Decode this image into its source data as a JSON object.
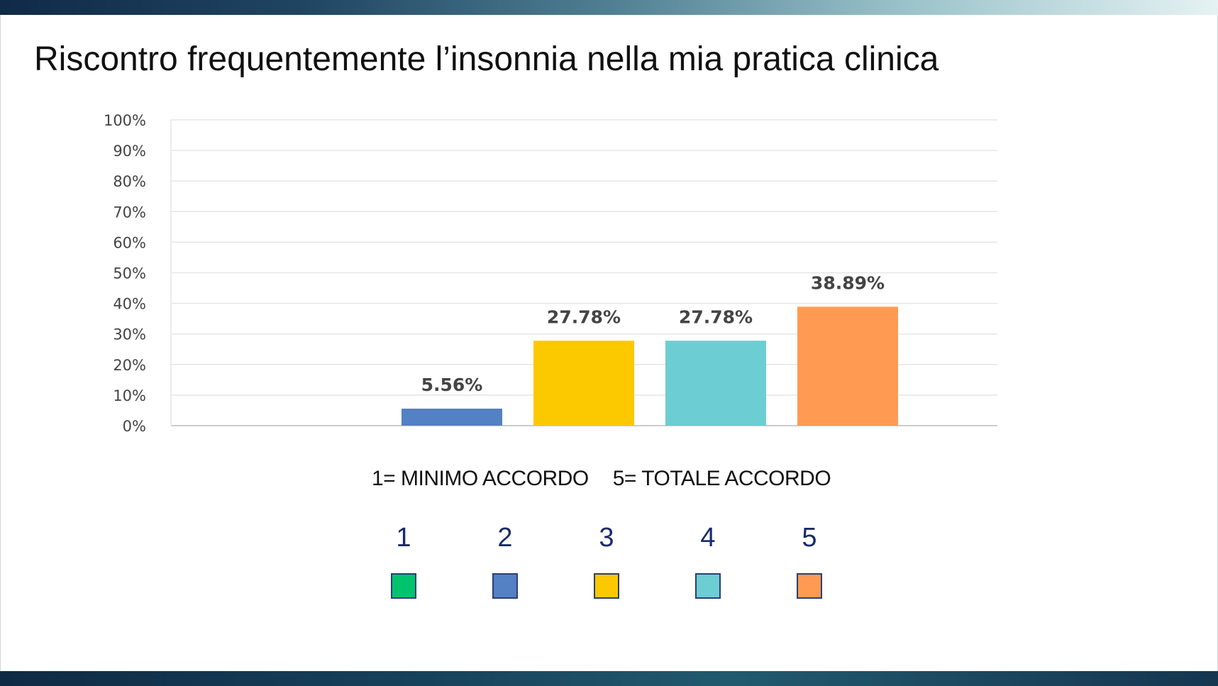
{
  "slide": {
    "title": "Riscontro frequentemente l’insonnia nella mia pratica clinica",
    "scale_min_label": "1= MINIMO ACCORDO",
    "scale_max_label": "5= TOTALE ACCORDO"
  },
  "legend": [
    {
      "label": "1",
      "color": "#00c36e"
    },
    {
      "label": "2",
      "color": "#5480c4"
    },
    {
      "label": "3",
      "color": "#fcc800"
    },
    {
      "label": "4",
      "color": "#6ccdd2"
    },
    {
      "label": "5",
      "color": "#ff9a52"
    }
  ],
  "chart_data": {
    "type": "bar",
    "categories": [
      "1",
      "2",
      "3",
      "4",
      "5"
    ],
    "values": [
      0,
      5.56,
      27.78,
      27.78,
      38.89
    ],
    "data_labels": [
      "",
      "5.56%",
      "27.78%",
      "27.78%",
      "38.89%"
    ],
    "colors": [
      "#00c36e",
      "#5480c4",
      "#fcc800",
      "#6ccdd2",
      "#ff9a52"
    ],
    "ylim": [
      0,
      100
    ],
    "yticks": [
      "0%",
      "10%",
      "20%",
      "30%",
      "40%",
      "50%",
      "60%",
      "70%",
      "80%",
      "90%",
      "100%"
    ],
    "grid": true,
    "title": "",
    "xlabel": "",
    "ylabel": ""
  }
}
